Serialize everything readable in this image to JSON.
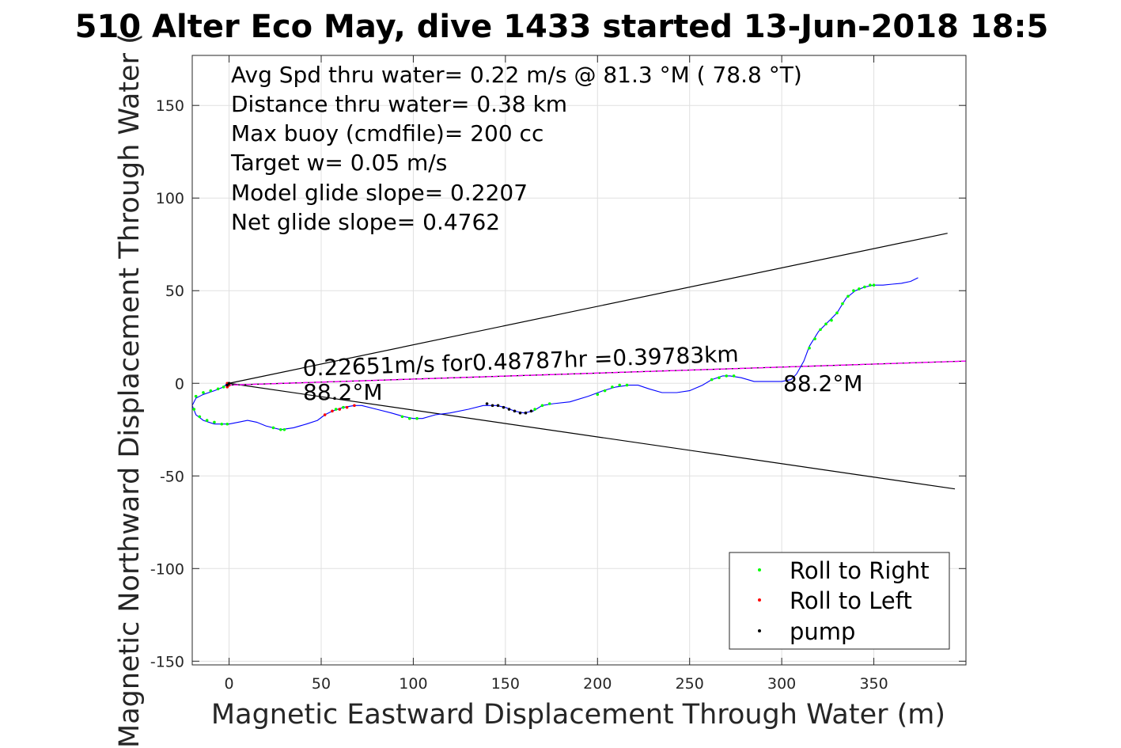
{
  "chart_data": {
    "type": "line",
    "title": "510 Alter Eco May, dive 1433 started 13-Jun-2018 18:5",
    "xlabel": "Magnetic Eastward Displacement Through Water (m)",
    "ylabel": "Magnetic Northward Displacement Through Water (",
    "xlim": [
      -20,
      400
    ],
    "ylim": [
      -152,
      177
    ],
    "xticks": [
      0,
      50,
      100,
      150,
      200,
      250,
      300,
      350
    ],
    "yticks": [
      -150,
      -100,
      -50,
      0,
      50,
      100,
      150
    ],
    "grid": true,
    "info_lines": [
      "Avg Spd thru water=  0.22 m/s @  81.3 °M ( 78.8 °T)",
      "Distance thru water=  0.38 km",
      "Max buoy (cmdfile)= 200 cc",
      "Target w= 0.05 m/s",
      "Model glide slope= 0.2207",
      "Net glide slope= 0.4762"
    ],
    "annotations": {
      "speed_text": "0.22651m/s for0.48787hr =0.39783km",
      "heading_left": "88.2°M",
      "heading_right": "88.2°M"
    },
    "track": {
      "name": "track",
      "color": "#0000ff",
      "points": [
        [
          -1,
          0
        ],
        [
          -3,
          -2
        ],
        [
          -8,
          -4
        ],
        [
          -14,
          -6
        ],
        [
          -18,
          -8
        ],
        [
          -20,
          -12
        ],
        [
          -18,
          -17
        ],
        [
          -14,
          -20
        ],
        [
          -8,
          -22
        ],
        [
          0,
          -22
        ],
        [
          5,
          -21
        ],
        [
          10,
          -20
        ],
        [
          15,
          -21
        ],
        [
          20,
          -23
        ],
        [
          28,
          -25
        ],
        [
          35,
          -24
        ],
        [
          42,
          -22
        ],
        [
          48,
          -20
        ],
        [
          52,
          -17
        ],
        [
          56,
          -15
        ],
        [
          62,
          -13
        ],
        [
          68,
          -12
        ],
        [
          72,
          -12
        ],
        [
          80,
          -14
        ],
        [
          88,
          -16
        ],
        [
          95,
          -18
        ],
        [
          100,
          -19
        ],
        [
          105,
          -19
        ],
        [
          112,
          -17
        ],
        [
          120,
          -16
        ],
        [
          130,
          -14
        ],
        [
          138,
          -12
        ],
        [
          145,
          -12
        ],
        [
          150,
          -13
        ],
        [
          155,
          -15
        ],
        [
          160,
          -16
        ],
        [
          165,
          -15
        ],
        [
          170,
          -12
        ],
        [
          176,
          -11
        ],
        [
          185,
          -10
        ],
        [
          195,
          -7
        ],
        [
          203,
          -4
        ],
        [
          210,
          -2
        ],
        [
          217,
          -1
        ],
        [
          222,
          -1
        ],
        [
          228,
          -3
        ],
        [
          235,
          -5
        ],
        [
          243,
          -5
        ],
        [
          250,
          -4
        ],
        [
          257,
          -1
        ],
        [
          262,
          2
        ],
        [
          268,
          4
        ],
        [
          272,
          4
        ],
        [
          278,
          3
        ],
        [
          285,
          1
        ],
        [
          292,
          1
        ],
        [
          300,
          1
        ],
        [
          305,
          2
        ],
        [
          308,
          5
        ],
        [
          312,
          12
        ],
        [
          315,
          20
        ],
        [
          320,
          28
        ],
        [
          325,
          33
        ],
        [
          330,
          38
        ],
        [
          335,
          46
        ],
        [
          340,
          50
        ],
        [
          345,
          52
        ],
        [
          350,
          53
        ],
        [
          355,
          53
        ],
        [
          360,
          53.5
        ],
        [
          365,
          54
        ],
        [
          370,
          55
        ],
        [
          374,
          57
        ]
      ]
    },
    "markers": {
      "right_roll": {
        "name": "Roll to Right",
        "color": "#00ff00",
        "points": [
          [
            -3,
            -2
          ],
          [
            -6,
            -3
          ],
          [
            -10,
            -4
          ],
          [
            -14,
            -5
          ],
          [
            -18,
            -7
          ],
          [
            -19,
            -14
          ],
          [
            -16,
            -18
          ],
          [
            -12,
            -20
          ],
          [
            -8,
            -21
          ],
          [
            -4,
            -22
          ],
          [
            -1,
            -22
          ],
          [
            24,
            -24
          ],
          [
            28,
            -25
          ],
          [
            30,
            -25
          ],
          [
            58,
            -14
          ],
          [
            62,
            -13
          ],
          [
            94,
            -18
          ],
          [
            98,
            -19
          ],
          [
            102,
            -19
          ],
          [
            166,
            -14
          ],
          [
            170,
            -12
          ],
          [
            174,
            -11
          ],
          [
            200,
            -6
          ],
          [
            204,
            -4
          ],
          [
            208,
            -2
          ],
          [
            212,
            -1
          ],
          [
            216,
            -1
          ],
          [
            262,
            2
          ],
          [
            266,
            3
          ],
          [
            270,
            4
          ],
          [
            274,
            4
          ],
          [
            315,
            19
          ],
          [
            318,
            24
          ],
          [
            321,
            29
          ],
          [
            324,
            32
          ],
          [
            327,
            34
          ],
          [
            330,
            38
          ],
          [
            333,
            43
          ],
          [
            336,
            47
          ],
          [
            339,
            50
          ],
          [
            342,
            51
          ],
          [
            345,
            52
          ],
          [
            348,
            53
          ],
          [
            350,
            53
          ]
        ]
      },
      "left_roll": {
        "name": "Roll to Left",
        "color": "#ff0000",
        "points": [
          [
            -1,
            0
          ],
          [
            0,
            -1
          ],
          [
            -1,
            -2
          ],
          [
            52,
            -17
          ],
          [
            56,
            -15
          ],
          [
            60,
            -14
          ],
          [
            64,
            -13
          ],
          [
            68,
            -12
          ]
        ]
      },
      "pump": {
        "name": "pump",
        "color": "#000000",
        "points": [
          [
            -1,
            -1
          ],
          [
            0,
            0
          ],
          [
            140,
            -11
          ],
          [
            143,
            -12
          ],
          [
            146,
            -12
          ],
          [
            149,
            -13
          ],
          [
            152,
            -14
          ],
          [
            155,
            -15
          ],
          [
            158,
            -16
          ],
          [
            161,
            -16
          ],
          [
            164,
            -15
          ]
        ]
      }
    },
    "glide_lines": [
      {
        "x": [
          0,
          390
        ],
        "y": [
          0,
          81
        ]
      },
      {
        "x": [
          0,
          394
        ],
        "y": [
          0,
          -57
        ]
      },
      {
        "x": [
          -1,
          400
        ],
        "y": [
          -1,
          12
        ]
      }
    ],
    "legend": {
      "placement": "bottom-right",
      "entries": [
        "Roll to Right",
        "Roll to Left",
        "pump"
      ]
    }
  }
}
